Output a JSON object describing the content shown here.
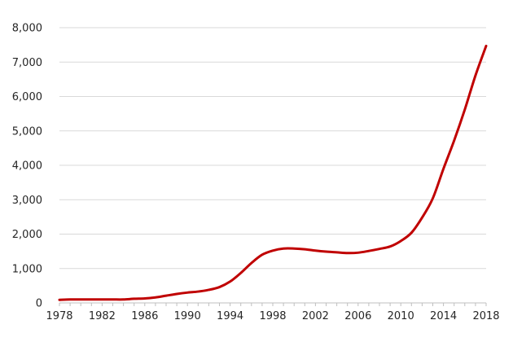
{
  "chart_data": {
    "type": "line",
    "title": "",
    "xlabel": "",
    "ylabel": "",
    "xlim": [
      1978,
      2018
    ],
    "ylim": [
      0,
      8000
    ],
    "grid": true,
    "legend": "none",
    "y_ticks": [
      0,
      1000,
      2000,
      3000,
      4000,
      5000,
      6000,
      7000,
      8000
    ],
    "y_tick_labels": [
      "0",
      "1,000",
      "2,000",
      "3,000",
      "4,000",
      "5,000",
      "6,000",
      "7,000",
      "8,000"
    ],
    "x_ticks": [
      1978,
      1982,
      1986,
      1990,
      1994,
      1998,
      2002,
      2006,
      2010,
      2014,
      2018
    ],
    "x_tick_labels": [
      "1978",
      "1982",
      "1986",
      "1990",
      "1994",
      "1998",
      "2002",
      "2006",
      "2010",
      "2014",
      "2018"
    ],
    "series": [
      {
        "color": "#c00000",
        "x": [
          1978,
          1979,
          1980,
          1981,
          1982,
          1983,
          1984,
          1985,
          1986,
          1987,
          1988,
          1989,
          1990,
          1991,
          1992,
          1993,
          1994,
          1995,
          1996,
          1997,
          1998,
          1999,
          2000,
          2001,
          2002,
          2003,
          2004,
          2005,
          2006,
          2007,
          2008,
          2009,
          2010,
          2011,
          2012,
          2013,
          2014,
          2015,
          2016,
          2017,
          2018
        ],
        "y": [
          90,
          100,
          100,
          100,
          100,
          100,
          100,
          120,
          130,
          160,
          210,
          260,
          300,
          330,
          380,
          460,
          620,
          870,
          1160,
          1400,
          1520,
          1580,
          1580,
          1560,
          1520,
          1490,
          1470,
          1450,
          1460,
          1510,
          1570,
          1640,
          1800,
          2040,
          2480,
          3040,
          3900,
          4720,
          5620,
          6610,
          7470
        ]
      }
    ]
  }
}
